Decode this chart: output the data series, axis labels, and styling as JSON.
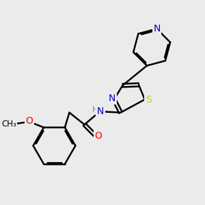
{
  "background_color": "#ebebeb",
  "bond_color": "#000000",
  "atom_colors": {
    "N": "#0000cc",
    "S": "#cccc00",
    "O": "#ff0000",
    "C": "#000000",
    "H": "#5a9a9a"
  },
  "bond_width": 1.8,
  "font_size": 10,
  "figsize": [
    3.0,
    3.0
  ],
  "dpi": 100
}
